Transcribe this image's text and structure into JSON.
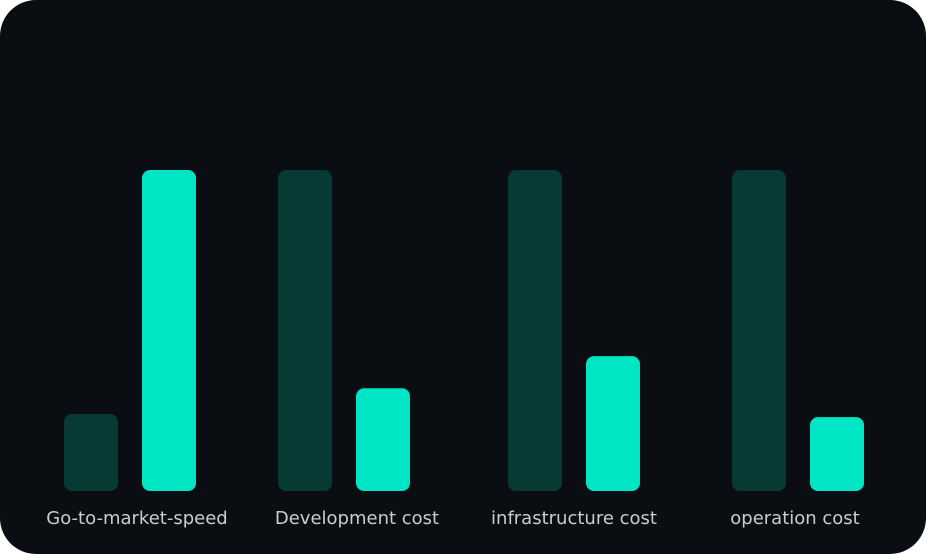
{
  "chart_data": {
    "type": "bar",
    "categories": [
      "Go-to-market-speed",
      "Development cost",
      "infrastructure cost",
      "operation cost"
    ],
    "series": [
      {
        "color": "#073a35",
        "values": [
          24,
          100,
          100,
          100
        ]
      },
      {
        "color": "#00e5c3",
        "values": [
          100,
          32,
          42,
          23
        ]
      }
    ],
    "ylim": [
      0,
      100
    ]
  }
}
